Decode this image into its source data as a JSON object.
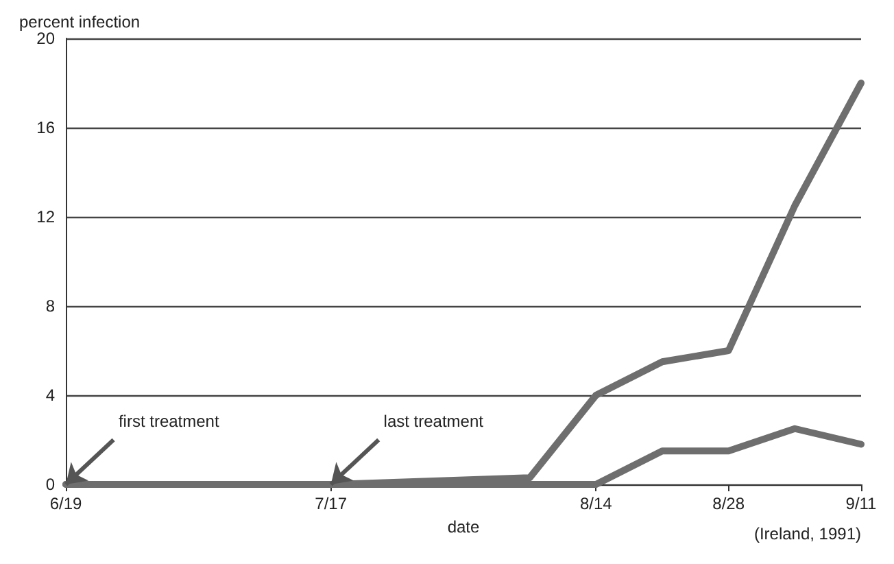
{
  "chart_data": {
    "type": "line",
    "xlabel": "date",
    "ylabel": "percent infection",
    "x": [
      "--06-19",
      "--07-17",
      "--08-07",
      "--08-14",
      "--08-21",
      "--08-28",
      "--09-04",
      "--09-11"
    ],
    "series": [
      {
        "color": "#6e6e6e",
        "values": [
          0,
          0,
          0.3,
          4,
          5.5,
          6,
          12.5,
          18
        ]
      },
      {
        "color": "#6e6e6e",
        "values": [
          0,
          0,
          0,
          0,
          1.5,
          1.5,
          2.5,
          1.8
        ]
      }
    ],
    "xlim": [
      "--06-19",
      "--09-11"
    ],
    "xticks": [
      {
        "value": "--06-19",
        "label": "6/19"
      },
      {
        "value": "--07-17",
        "label": "7/17"
      },
      {
        "value": "--08-14",
        "label": "8/14"
      },
      {
        "value": "--08-28",
        "label": "8/28"
      },
      {
        "value": "--09-11",
        "label": "9/11"
      }
    ],
    "ylim": [
      0,
      20
    ],
    "yticks": [
      0,
      4,
      8,
      12,
      16,
      20
    ],
    "grid": "y",
    "marker": "none",
    "line_style": "solid",
    "annotations": [
      {
        "text": "first treatment",
        "x": "--06-19",
        "y": 0
      },
      {
        "text": "last treatment",
        "x": "--07-17",
        "y": 0
      },
      "(Ireland, 1991)"
    ]
  }
}
